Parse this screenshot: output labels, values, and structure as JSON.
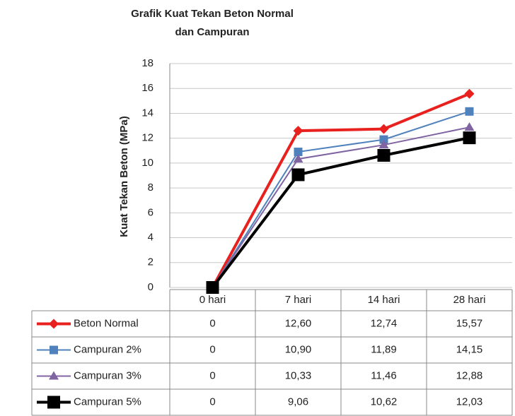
{
  "chart_data": {
    "type": "line",
    "title": [
      "Grafik Kuat Tekan Beton Normal",
      "dan Campuran"
    ],
    "y_label": "Kuat Tekan Beton (MPa)",
    "categories": [
      "0 hari",
      "7 hari",
      "14 hari",
      "28 hari"
    ],
    "ylim": [
      0,
      18
    ],
    "yticks": [
      0,
      2,
      4,
      6,
      8,
      10,
      12,
      14,
      16,
      18
    ],
    "grid": true,
    "series": [
      {
        "name": "Beton Normal",
        "color": "#e8211f",
        "marker": "diamond",
        "values": [
          0,
          12.6,
          12.74,
          15.57
        ],
        "value_labels": [
          "0",
          "12,60",
          "12,74",
          "15,57"
        ]
      },
      {
        "name": "Campuran 2%",
        "color": "#4f81bd",
        "marker": "square",
        "values": [
          0,
          10.9,
          11.89,
          14.15
        ],
        "value_labels": [
          "0",
          "10,90",
          "11,89",
          "14,15"
        ]
      },
      {
        "name": "Campuran 3%",
        "color": "#8064a2",
        "marker": "triangle",
        "values": [
          0,
          10.33,
          11.46,
          12.88
        ],
        "value_labels": [
          "0",
          "10,33",
          "11,46",
          "12,88"
        ]
      },
      {
        "name": "Campuran 5%",
        "color": "#000000",
        "marker": "bigsquare",
        "values": [
          0,
          9.06,
          10.62,
          12.03
        ],
        "value_labels": [
          "0",
          "9,06",
          "10,62",
          "12,03"
        ]
      }
    ]
  }
}
